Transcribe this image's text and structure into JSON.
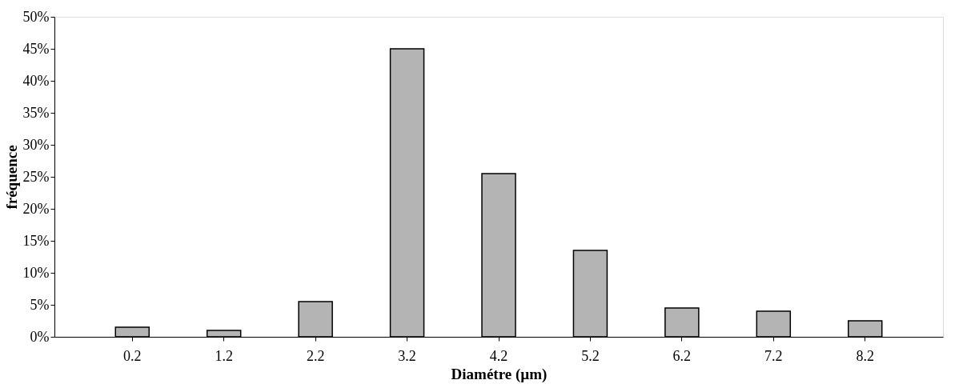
{
  "chart_data": {
    "type": "bar",
    "xlabel": "Diamétre (µm)",
    "ylabel": "fréquence",
    "categories": [
      "0.2",
      "1.2",
      "2.2",
      "3.2",
      "4.2",
      "5.2",
      "6.2",
      "7.2",
      "8.2"
    ],
    "values": [
      1.5,
      1,
      5.5,
      45,
      25.5,
      13.5,
      4.5,
      4,
      2.5
    ],
    "color": "#b4b4b4",
    "ylim": [
      0,
      50
    ],
    "yticks": [
      {
        "value": 0,
        "label": "0%"
      },
      {
        "value": 5,
        "label": "5%"
      },
      {
        "value": 10,
        "label": "10%"
      },
      {
        "value": 15,
        "label": "15%"
      },
      {
        "value": 20,
        "label": "20%"
      },
      {
        "value": 25,
        "label": "25%"
      },
      {
        "value": 30,
        "label": "30%"
      },
      {
        "value": 35,
        "label": "35%"
      },
      {
        "value": 40,
        "label": "40%"
      },
      {
        "value": 45,
        "label": "45%"
      },
      {
        "value": 50,
        "label": "50%"
      }
    ],
    "grid": false
  }
}
